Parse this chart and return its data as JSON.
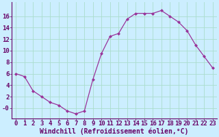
{
  "hours": [
    0,
    1,
    2,
    3,
    4,
    5,
    6,
    7,
    8,
    9,
    10,
    11,
    12,
    13,
    14,
    15,
    16,
    17,
    18,
    19,
    20,
    21,
    22,
    23
  ],
  "values": [
    6.0,
    5.5,
    3.0,
    2.0,
    1.0,
    0.5,
    -0.5,
    -1.0,
    -0.5,
    5.0,
    9.5,
    12.5,
    13.0,
    15.5,
    16.5,
    16.5,
    16.5,
    17.0,
    16.0,
    15.0,
    13.5,
    11.0,
    9.0,
    7.0
  ],
  "line_color": "#993399",
  "marker_color": "#993399",
  "bg_color": "#cceeff",
  "grid_color": "#aaddcc",
  "xlabel": "Windchill (Refroidissement éolien,°C)",
  "yticks": [
    0,
    2,
    4,
    6,
    8,
    10,
    12,
    14,
    16
  ],
  "ytick_labels": [
    "-0",
    "2",
    "4",
    "6",
    "8",
    "10",
    "12",
    "14",
    "16"
  ],
  "ylim": [
    -1.8,
    18.5
  ],
  "xlim": [
    -0.5,
    23.5
  ],
  "tick_fontsize": 6.5,
  "label_fontsize": 7.0
}
